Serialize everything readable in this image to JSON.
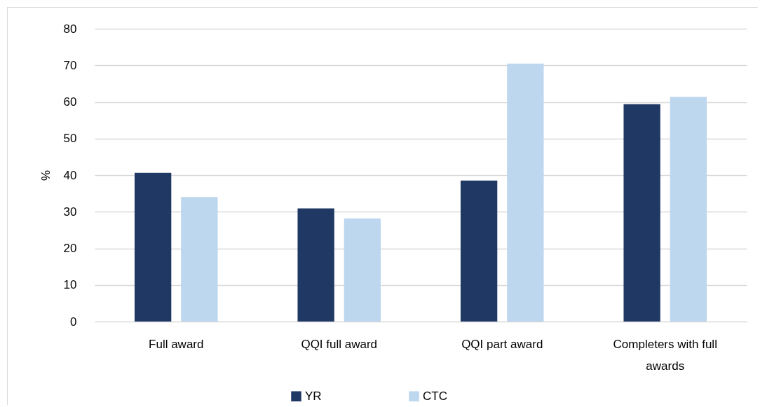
{
  "chart_data": {
    "type": "bar",
    "ylabel": "%",
    "categories": [
      "Full award",
      "QQI full award",
      "QQI part award",
      "Completers with full awards"
    ],
    "series": [
      {
        "name": "YR",
        "color": "#203864",
        "values": [
          40.6,
          30.9,
          38.5,
          59.4
        ]
      },
      {
        "name": "CTC",
        "color": "#bdd7ee",
        "values": [
          34.0,
          28.2,
          70.5,
          61.4
        ]
      }
    ],
    "ylim": [
      0,
      80
    ],
    "yticks": [
      0,
      10,
      20,
      30,
      40,
      50,
      60,
      70,
      80
    ],
    "grid": "y",
    "legend": "bottom"
  }
}
